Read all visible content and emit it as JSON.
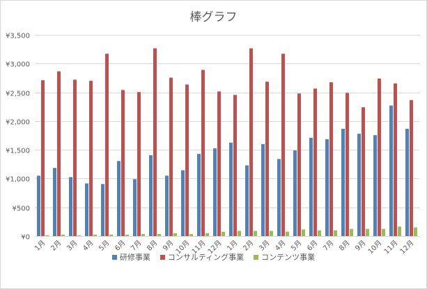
{
  "chart_data": {
    "type": "bar",
    "title": "棒グラフ",
    "xlabel": "",
    "ylabel": "",
    "ylim": [
      0,
      3500
    ],
    "yticks": [
      "¥0",
      "¥500",
      "¥1,000",
      "¥1,500",
      "¥2,000",
      "¥2,500",
      "¥3,000",
      "¥3,500"
    ],
    "ytick_values": [
      0,
      500,
      1000,
      1500,
      2000,
      2500,
      3000,
      3500
    ],
    "grid": true,
    "legend_position": "bottom",
    "categories": [
      "1月",
      "2月",
      "3月",
      "4月",
      "5月",
      "6月",
      "7月",
      "8月",
      "9月",
      "10月",
      "11月",
      "12月",
      "1月",
      "2月",
      "3月",
      "4月",
      "5月",
      "6月",
      "7月",
      "8月",
      "9月",
      "10月",
      "11月",
      "12月"
    ],
    "series": [
      {
        "name": "研修事業",
        "color": "#4f81bd",
        "values": [
          1050,
          1185,
          1025,
          915,
          905,
          1305,
          990,
          1405,
          1050,
          1145,
          1430,
          1525,
          1625,
          1230,
          1600,
          1340,
          1490,
          1710,
          1685,
          1865,
          1780,
          1755,
          2270,
          1865
        ]
      },
      {
        "name": "コンサルティング事業",
        "color": "#c0504d",
        "values": [
          2710,
          2865,
          2720,
          2700,
          3170,
          2540,
          2505,
          3265,
          2755,
          2635,
          2890,
          2515,
          2455,
          3265,
          2685,
          3170,
          2480,
          2565,
          2675,
          2490,
          2240,
          2740,
          2655,
          2365
        ]
      },
      {
        "name": "コンテンツ事業",
        "color": "#9bbb59",
        "values": [
          12,
          25,
          12,
          25,
          25,
          25,
          37,
          37,
          50,
          37,
          50,
          75,
          90,
          90,
          90,
          77,
          115,
          100,
          100,
          125,
          125,
          125,
          165,
          150
        ]
      }
    ]
  }
}
